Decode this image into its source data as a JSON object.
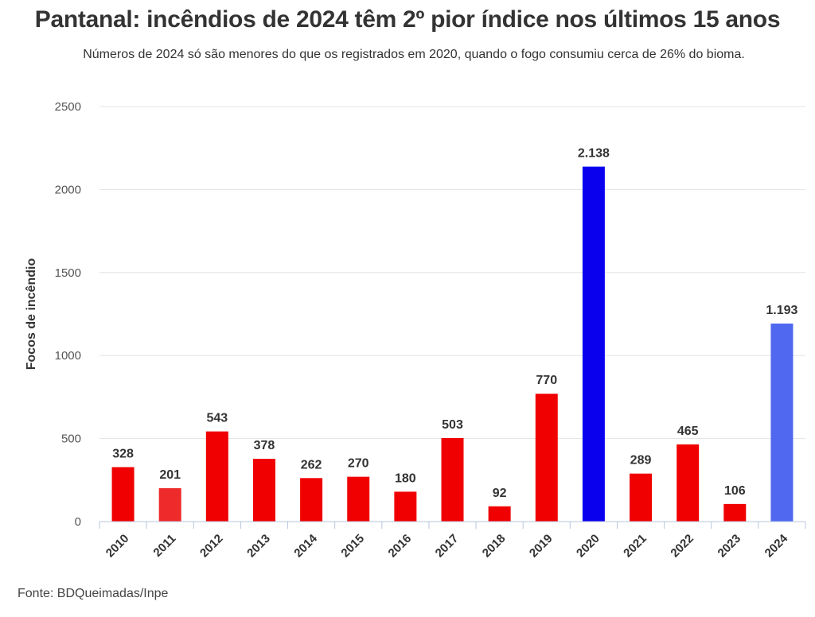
{
  "title": "Pantanal: incêndios de 2024 têm 2º pior índice nos últimos 15 anos",
  "subtitle": "Números de 2024 só são menores do que os registrados em 2020, quando o fogo consumiu cerca de 26% do bioma.",
  "source": "Fonte: BDQueimadas/Inpe",
  "chart_data": {
    "type": "bar",
    "categories": [
      "2010",
      "2011",
      "2012",
      "2013",
      "2014",
      "2015",
      "2016",
      "2017",
      "2018",
      "2019",
      "2020",
      "2021",
      "2022",
      "2023",
      "2024"
    ],
    "values": [
      328,
      201,
      543,
      378,
      262,
      270,
      180,
      503,
      92,
      770,
      2138,
      289,
      465,
      106,
      1193
    ],
    "data_labels": [
      "328",
      "201",
      "543",
      "378",
      "262",
      "270",
      "180",
      "503",
      "92",
      "770",
      "2.138",
      "289",
      "465",
      "106",
      "1.193"
    ],
    "colors": [
      "#f00000",
      "#ee2a2a",
      "#f00000",
      "#f00000",
      "#f00000",
      "#f00000",
      "#f00000",
      "#f00000",
      "#f00000",
      "#f00000",
      "#0a00ee",
      "#f00000",
      "#f00000",
      "#f00000",
      "#5068f0"
    ],
    "ylabel": "Focos de incêndio",
    "xlabel": "",
    "ylim": [
      0,
      2500
    ],
    "yticks": [
      0,
      500,
      1000,
      1500,
      2000,
      2500
    ],
    "grid": true
  }
}
